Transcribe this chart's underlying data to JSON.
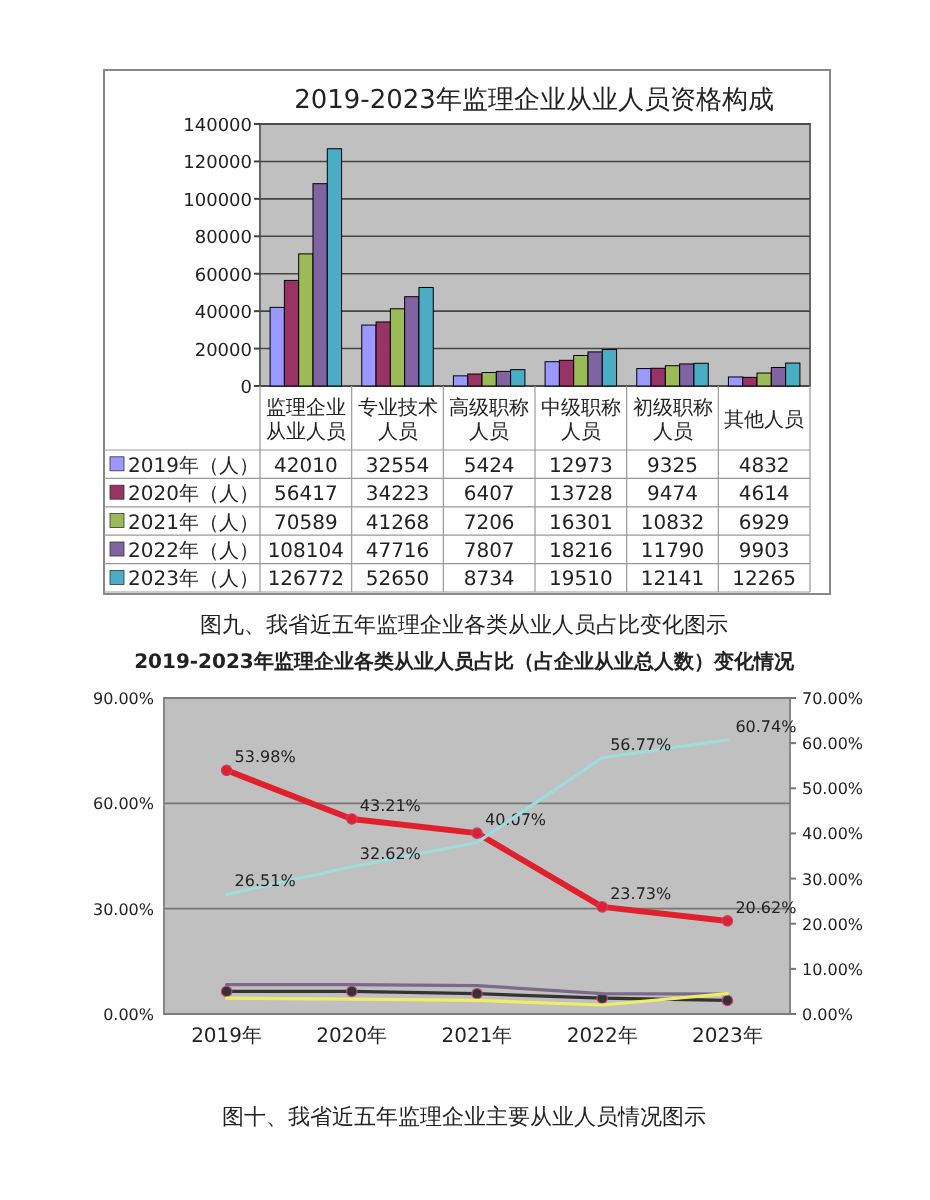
{
  "chart_data": [
    {
      "type": "bar",
      "title": "2019-2023年监理企业从业人员资格构成",
      "categories": [
        "监理企业从业人员",
        "专业技术人员",
        "高级职称人员",
        "中级职称人员",
        "初级职称人员",
        "其他人员"
      ],
      "series": [
        {
          "name": "2019年（人）",
          "color": "#9999ff",
          "values": [
            42010,
            32554,
            5424,
            12973,
            9325,
            4832
          ]
        },
        {
          "name": "2020年（人）",
          "color": "#993366",
          "values": [
            56417,
            34223,
            6407,
            13728,
            9474,
            4614
          ]
        },
        {
          "name": "2021年（人）",
          "color": "#9bbb59",
          "values": [
            70589,
            41268,
            7206,
            16301,
            10832,
            6929
          ]
        },
        {
          "name": "2022年（人）",
          "color": "#8064a2",
          "values": [
            108104,
            47716,
            7807,
            18216,
            11790,
            9903
          ]
        },
        {
          "name": "2023年（人）",
          "color": "#4bacc6",
          "values": [
            126772,
            52650,
            8734,
            19510,
            12141,
            12265
          ]
        }
      ],
      "ylim": [
        0,
        140000
      ],
      "yticks": [
        0,
        20000,
        40000,
        60000,
        80000,
        100000,
        120000,
        140000
      ],
      "grid": "y",
      "legend": "bottom",
      "data_labels": true,
      "annotations": [
        "图九、我省近五年监理企业各类从业人员占比变化图示"
      ]
    },
    {
      "type": "line",
      "title": "2019-2023年监理企业各类从业人员占比（占企业从业总人数）变化情况",
      "categories": [
        "2019年",
        "2020年",
        "2021年",
        "2022年",
        "2023年"
      ],
      "series": [
        {
          "color": "#e0202a",
          "axis": "y2",
          "marker": "circle",
          "values": [
            53.98,
            43.21,
            40.07,
            23.73,
            20.62
          ],
          "value_labels": [
            "53.98%",
            "43.21%",
            "40.07%",
            "23.73%",
            "20.62%"
          ]
        },
        {
          "color": "#333333",
          "axis": "y2",
          "marker": "circle",
          "values": [
            5,
            5,
            4.5,
            3.5,
            3
          ]
        },
        {
          "color": "#7a6a8a",
          "axis": "y2",
          "marker": "none",
          "values": [
            6.5,
            6.5,
            6.3,
            4.5,
            4.4
          ]
        },
        {
          "color": "#eeee66",
          "axis": "y2",
          "marker": "none",
          "values": [
            3.5,
            3.3,
            3,
            2,
            4.5
          ]
        },
        {
          "color": "#9fdcdc",
          "axis": "y2",
          "marker": "none",
          "values": [
            26.51,
            32.62,
            38,
            56.77,
            60.74
          ],
          "value_labels": [
            "26.51%",
            "32.62%",
            null,
            "56.77%",
            "60.74%"
          ]
        }
      ],
      "ylim": [
        0,
        90
      ],
      "yticks": [
        {
          "value": 0,
          "label": "0.00%"
        },
        {
          "value": 30,
          "label": "30.00%"
        },
        {
          "value": 60,
          "label": "60.00%"
        },
        {
          "value": 90,
          "label": "90.00%"
        }
      ],
      "y2lim": [
        0,
        70
      ],
      "y2ticks": [
        {
          "value": 0,
          "label": "0.00%"
        },
        {
          "value": 10,
          "label": "10.00%"
        },
        {
          "value": 20,
          "label": "20.00%"
        },
        {
          "value": 30,
          "label": "30.00%"
        },
        {
          "value": 40,
          "label": "40.00%"
        },
        {
          "value": 50,
          "label": "50.00%"
        },
        {
          "value": 60,
          "label": "60.00%"
        },
        {
          "value": 70,
          "label": "70.00%"
        }
      ],
      "grid": "y",
      "line_style": "solid",
      "annotations": [
        "图十、我省近五年监理企业主要从业人员情况图示"
      ]
    }
  ]
}
